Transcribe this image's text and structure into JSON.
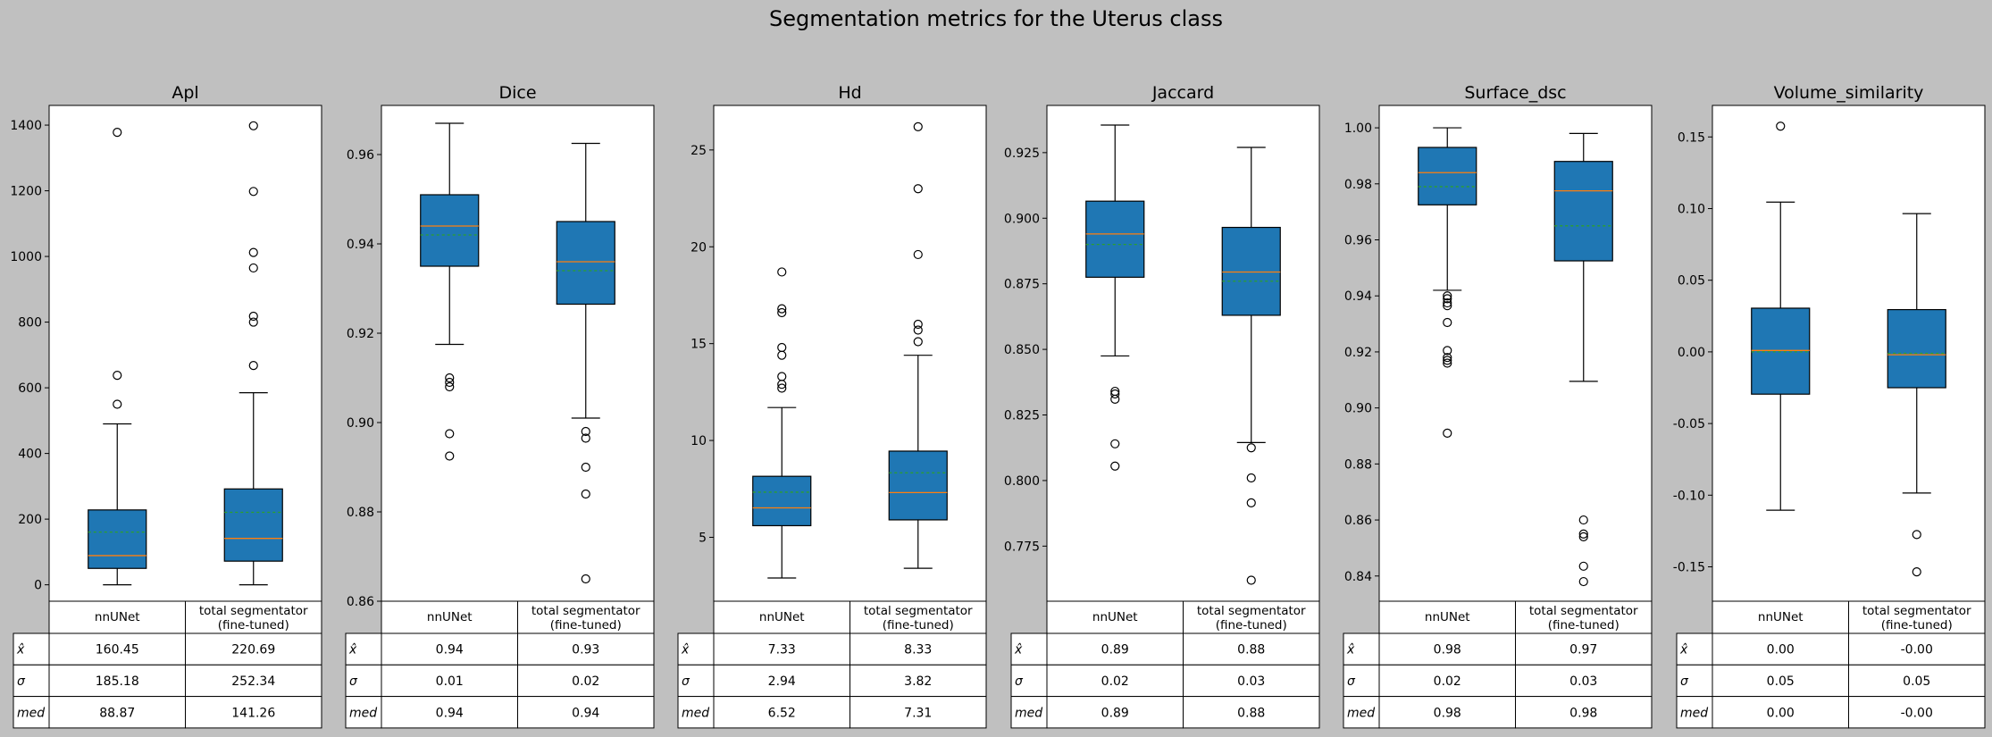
{
  "figure": {
    "title": "Segmentation metrics for the Uterus class",
    "background": "#c0c0c0",
    "box_color": "#1f77b4",
    "median_color": "#ff7f0e",
    "mean_color": "#2ca02c",
    "row_symbols": [
      "x̂",
      "σ",
      "med"
    ],
    "columns": [
      "nnUNet",
      "total segmentator",
      "(fine-tuned)"
    ]
  },
  "chart_data": [
    {
      "type": "box",
      "title": "Apl",
      "ylim": [
        -50,
        1460
      ],
      "yticks": [
        0,
        200,
        400,
        600,
        800,
        1000,
        1200,
        1400
      ],
      "ytick_labels": [
        "0",
        "200",
        "400",
        "600",
        "800",
        "1000",
        "1200",
        "1400"
      ],
      "series": [
        {
          "whislo": 0,
          "q1": 50,
          "med": 88.87,
          "mean": 160.45,
          "q3": 228,
          "whishi": 490,
          "fliers": [
            550,
            638,
            1378
          ]
        },
        {
          "whislo": 0,
          "q1": 72,
          "med": 141.26,
          "mean": 220.69,
          "q3": 292,
          "whishi": 585,
          "fliers": [
            668,
            800,
            818,
            965,
            1012,
            1198,
            1398
          ]
        }
      ],
      "table": [
        [
          "160.45",
          "220.69"
        ],
        [
          "185.18",
          "252.34"
        ],
        [
          "88.87",
          "141.26"
        ]
      ]
    },
    {
      "type": "box",
      "title": "Dice",
      "ylim": [
        0.86,
        0.971
      ],
      "yticks": [
        0.86,
        0.88,
        0.9,
        0.92,
        0.94,
        0.96
      ],
      "ytick_labels": [
        "0.86",
        "0.88",
        "0.90",
        "0.92",
        "0.94",
        "0.96"
      ],
      "series": [
        {
          "whislo": 0.9175,
          "q1": 0.935,
          "med": 0.944,
          "mean": 0.942,
          "q3": 0.951,
          "whishi": 0.967,
          "fliers": [
            0.8925,
            0.8975,
            0.908,
            0.909,
            0.91
          ]
        },
        {
          "whislo": 0.901,
          "q1": 0.9265,
          "med": 0.936,
          "mean": 0.934,
          "q3": 0.945,
          "whishi": 0.9625,
          "fliers": [
            0.865,
            0.884,
            0.89,
            0.8965,
            0.898
          ]
        }
      ],
      "table": [
        [
          "0.94",
          "0.93"
        ],
        [
          "0.01",
          "0.02"
        ],
        [
          "0.94",
          "0.94"
        ]
      ]
    },
    {
      "type": "box",
      "title": "Hd",
      "ylim": [
        1.7,
        27.3
      ],
      "yticks": [
        5,
        10,
        15,
        20,
        25
      ],
      "ytick_labels": [
        "5",
        "10",
        "15",
        "20",
        "25"
      ],
      "series": [
        {
          "whislo": 2.9,
          "q1": 5.6,
          "med": 6.52,
          "mean": 7.33,
          "q3": 8.15,
          "whishi": 11.7,
          "fliers": [
            12.7,
            12.9,
            13.3,
            14.4,
            14.8,
            16.6,
            16.8,
            18.7
          ]
        },
        {
          "whislo": 3.4,
          "q1": 5.9,
          "med": 7.31,
          "mean": 8.33,
          "q3": 9.45,
          "whishi": 14.4,
          "fliers": [
            15.1,
            15.7,
            16.0,
            19.6,
            23.0,
            26.2
          ]
        }
      ],
      "table": [
        [
          "7.33",
          "8.33"
        ],
        [
          "2.94",
          "3.82"
        ],
        [
          "6.52",
          "7.31"
        ]
      ]
    },
    {
      "type": "box",
      "title": "Jaccard",
      "ylim": [
        0.754,
        0.943
      ],
      "yticks": [
        0.775,
        0.8,
        0.825,
        0.85,
        0.875,
        0.9,
        0.925
      ],
      "ytick_labels": [
        "0.775",
        "0.800",
        "0.825",
        "0.850",
        "0.875",
        "0.900",
        "0.925"
      ],
      "series": [
        {
          "whislo": 0.8475,
          "q1": 0.8775,
          "med": 0.894,
          "mean": 0.89,
          "q3": 0.9065,
          "whishi": 0.9355,
          "fliers": [
            0.8055,
            0.814,
            0.831,
            0.833,
            0.834
          ]
        },
        {
          "whislo": 0.8145,
          "q1": 0.863,
          "med": 0.8795,
          "mean": 0.876,
          "q3": 0.8965,
          "whishi": 0.927,
          "fliers": [
            0.762,
            0.7915,
            0.801,
            0.8125
          ]
        }
      ],
      "table": [
        [
          "0.89",
          "0.88"
        ],
        [
          "0.02",
          "0.03"
        ],
        [
          "0.89",
          "0.88"
        ]
      ]
    },
    {
      "type": "box",
      "title": "Surface_dsc",
      "ylim": [
        0.831,
        1.008
      ],
      "yticks": [
        0.84,
        0.86,
        0.88,
        0.9,
        0.92,
        0.94,
        0.96,
        0.98,
        1.0
      ],
      "ytick_labels": [
        "0.84",
        "0.86",
        "0.88",
        "0.90",
        "0.92",
        "0.94",
        "0.96",
        "0.98",
        "1.00"
      ],
      "series": [
        {
          "whislo": 0.942,
          "q1": 0.9725,
          "med": 0.984,
          "mean": 0.979,
          "q3": 0.993,
          "whishi": 1.0,
          "fliers": [
            0.891,
            0.916,
            0.917,
            0.918,
            0.9205,
            0.9305,
            0.9365,
            0.9375,
            0.939,
            0.94
          ]
        },
        {
          "whislo": 0.9095,
          "q1": 0.9525,
          "med": 0.9775,
          "mean": 0.965,
          "q3": 0.988,
          "whishi": 0.998,
          "fliers": [
            0.838,
            0.8435,
            0.854,
            0.855,
            0.86
          ]
        }
      ],
      "table": [
        [
          "0.98",
          "0.97"
        ],
        [
          "0.02",
          "0.03"
        ],
        [
          "0.98",
          "0.98"
        ]
      ]
    },
    {
      "type": "box",
      "title": "Volume_similarity",
      "ylim": [
        -0.174,
        0.172
      ],
      "yticks": [
        -0.15,
        -0.1,
        -0.05,
        0.0,
        0.05,
        0.1,
        0.15
      ],
      "ytick_labels": [
        "-0.15",
        "-0.10",
        "-0.05",
        "0.00",
        "0.05",
        "0.10",
        "0.15"
      ],
      "series": [
        {
          "whislo": -0.1105,
          "q1": -0.0295,
          "med": 0.001,
          "mean": 0.0,
          "q3": 0.0305,
          "whishi": 0.1045,
          "fliers": [
            0.1575
          ]
        },
        {
          "whislo": -0.0985,
          "q1": -0.025,
          "med": -0.002,
          "mean": -0.001,
          "q3": 0.0295,
          "whishi": 0.0965,
          "fliers": [
            -0.1535,
            -0.1275
          ]
        }
      ],
      "table": [
        [
          "0.00",
          "-0.00"
        ],
        [
          "0.05",
          "0.05"
        ],
        [
          "0.00",
          "-0.00"
        ]
      ]
    }
  ]
}
